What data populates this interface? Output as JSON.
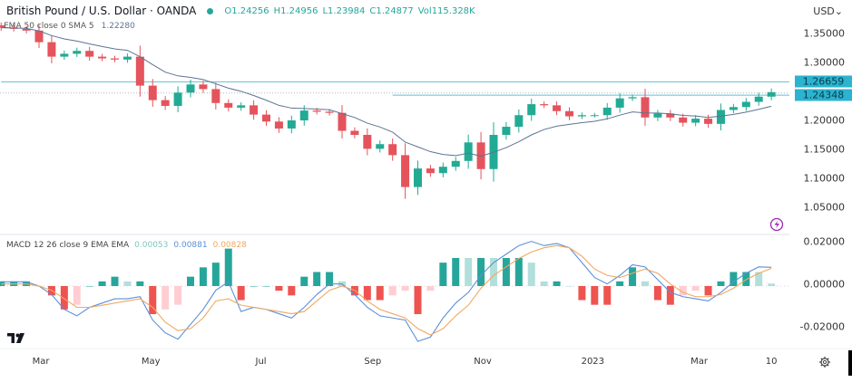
{
  "header": {
    "symbol_title": "British Pound / U.S. Dollar · OANDA",
    "open": "O1.24256",
    "high": "H1.24956",
    "low": "L1.23984",
    "close": "C1.24877",
    "volume": "Vol115.328K",
    "status_color": "#26a69a"
  },
  "ema_legend": {
    "label": "EMA 50 close 0 SMA 5",
    "value": "1.22280"
  },
  "macd_legend": {
    "label": "MACD 12 26 close 9 EMA EMA",
    "histogram": "0.00053",
    "macd": "0.00881",
    "signal": "0.00828"
  },
  "currency_selector": "USD⌄",
  "price_boxes": [
    {
      "label": "1.26659",
      "value": 1.26659
    },
    {
      "label": "1.24348",
      "value": 1.24348
    }
  ],
  "icons": {
    "alert": "lightning-icon",
    "logo": "tradingview-logo",
    "settings": "gear-icon"
  },
  "colors": {
    "up": "#22ab94",
    "down": "#e5535c",
    "ema": "#5d7394",
    "macd": "#5b8fd9",
    "signal": "#f0a860",
    "hline": "#5cc0d8",
    "hist_up": "#26a69a",
    "hist_up_light": "#b2dfdb",
    "hist_down": "#ef5350",
    "hist_down_light": "#ffcdd2"
  },
  "chart_data": {
    "type": "candlestick",
    "interval_shown": "weekly closes",
    "price_axis": {
      "ticks": [
        "1.35000",
        "1.30000",
        "1.20000",
        "1.15000",
        "1.10000",
        "1.05000"
      ],
      "tick_values": [
        1.35,
        1.3,
        1.2,
        1.15,
        1.1,
        1.05
      ]
    },
    "macd_axis": {
      "ticks": [
        "0.02000",
        "0.00000",
        "-0.02000"
      ],
      "tick_values": [
        0.02,
        0,
        -0.02
      ]
    },
    "time_axis": [
      {
        "label": "Mar",
        "date": "2022-03-01"
      },
      {
        "label": "May",
        "date": "2022-05-01"
      },
      {
        "label": "Jul",
        "date": "2022-07-01"
      },
      {
        "label": "Sep",
        "date": "2022-09-01"
      },
      {
        "label": "Nov",
        "date": "2022-11-01"
      },
      {
        "label": "2023",
        "date": "2023-01-01"
      },
      {
        "label": "Mar",
        "date": "2023-03-01"
      },
      {
        "label": "10",
        "date": "2023-04-10"
      }
    ],
    "horizontal_lines": [
      {
        "value": 1.26659,
        "from": "2022-02-07"
      },
      {
        "value": 1.24348,
        "from": "2022-09-12"
      }
    ],
    "current_price": 1.24877,
    "dates": [
      "2022-02-07",
      "2022-02-14",
      "2022-02-21",
      "2022-02-28",
      "2022-03-07",
      "2022-03-14",
      "2022-03-21",
      "2022-03-28",
      "2022-04-04",
      "2022-04-11",
      "2022-04-18",
      "2022-04-25",
      "2022-05-02",
      "2022-05-09",
      "2022-05-16",
      "2022-05-23",
      "2022-05-30",
      "2022-06-06",
      "2022-06-13",
      "2022-06-20",
      "2022-06-27",
      "2022-07-04",
      "2022-07-11",
      "2022-07-18",
      "2022-07-25",
      "2022-08-01",
      "2022-08-08",
      "2022-08-15",
      "2022-08-22",
      "2022-08-29",
      "2022-09-05",
      "2022-09-12",
      "2022-09-19",
      "2022-09-26",
      "2022-10-03",
      "2022-10-10",
      "2022-10-17",
      "2022-10-24",
      "2022-10-31",
      "2022-11-07",
      "2022-11-14",
      "2022-11-21",
      "2022-11-28",
      "2022-12-05",
      "2022-12-12",
      "2022-12-19",
      "2022-12-26",
      "2023-01-02",
      "2023-01-09",
      "2023-01-16",
      "2023-01-23",
      "2023-01-30",
      "2023-02-06",
      "2023-02-13",
      "2023-02-20",
      "2023-02-27",
      "2023-03-06",
      "2023-03-13",
      "2023-03-20",
      "2023-03-27",
      "2023-04-03",
      "2023-04-10"
    ],
    "close": [
      1.36,
      1.358,
      1.355,
      1.335,
      1.31,
      1.315,
      1.32,
      1.31,
      1.307,
      1.305,
      1.31,
      1.26,
      1.235,
      1.225,
      1.248,
      1.262,
      1.254,
      1.23,
      1.222,
      1.226,
      1.21,
      1.198,
      1.186,
      1.2,
      1.217,
      1.215,
      1.213,
      1.182,
      1.175,
      1.151,
      1.159,
      1.14,
      1.085,
      1.117,
      1.109,
      1.12,
      1.13,
      1.162,
      1.116,
      1.175,
      1.189,
      1.209,
      1.228,
      1.226,
      1.216,
      1.207,
      1.209,
      1.209,
      1.222,
      1.238,
      1.24,
      1.205,
      1.212,
      1.205,
      1.196,
      1.203,
      1.194,
      1.218,
      1.223,
      1.232,
      1.241,
      1.24877
    ],
    "macd": [
      0.002,
      0.002,
      0.002,
      0.0,
      -0.004,
      -0.011,
      -0.014,
      -0.01,
      -0.008,
      -0.006,
      -0.006,
      -0.005,
      -0.016,
      -0.022,
      -0.025,
      -0.018,
      -0.011,
      -0.002,
      0.002,
      -0.012,
      -0.01,
      -0.011,
      -0.013,
      -0.015,
      -0.01,
      -0.004,
      0.001,
      0.001,
      -0.004,
      -0.01,
      -0.014,
      -0.015,
      -0.016,
      -0.026,
      -0.024,
      -0.015,
      -0.008,
      -0.003,
      0.005,
      0.011,
      0.015,
      0.019,
      0.021,
      0.019,
      0.02,
      0.018,
      0.011,
      0.004,
      0.001,
      0.005,
      0.01,
      0.009,
      0.003,
      -0.003,
      -0.005,
      -0.006,
      -0.007,
      -0.003,
      0.002,
      0.006,
      0.009,
      0.00881
    ],
    "signal": [
      0.001,
      0.001,
      0.001,
      0.0,
      -0.002,
      -0.006,
      -0.01,
      -0.01,
      -0.009,
      -0.008,
      -0.007,
      -0.006,
      -0.01,
      -0.017,
      -0.021,
      -0.02,
      -0.015,
      -0.007,
      -0.006,
      -0.009,
      -0.01,
      -0.011,
      -0.012,
      -0.013,
      -0.012,
      -0.007,
      -0.002,
      0.0,
      -0.002,
      -0.007,
      -0.011,
      -0.013,
      -0.015,
      -0.02,
      -0.023,
      -0.02,
      -0.014,
      -0.009,
      -0.001,
      0.005,
      0.009,
      0.013,
      0.016,
      0.018,
      0.019,
      0.018,
      0.014,
      0.008,
      0.005,
      0.004,
      0.006,
      0.008,
      0.006,
      0.001,
      -0.003,
      -0.005,
      -0.005,
      -0.004,
      -0.001,
      0.003,
      0.006,
      0.00828
    ]
  }
}
